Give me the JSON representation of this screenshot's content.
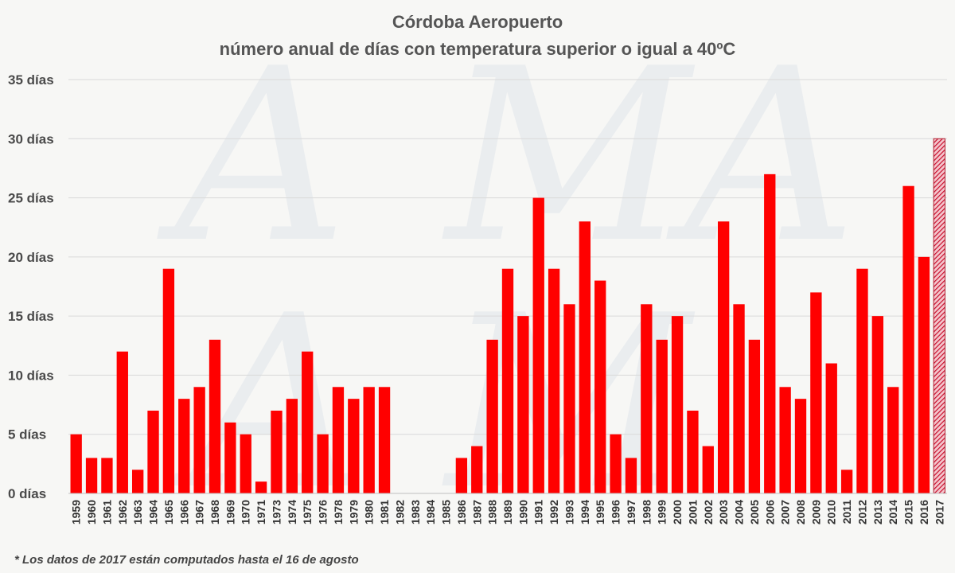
{
  "chart_data": {
    "type": "bar",
    "title": "Córdoba Aeropuerto",
    "subtitle": "número anual de días con temperatura superior o igual a 40ºC",
    "xlabel": "",
    "ylabel": "",
    "ylim": [
      0,
      35
    ],
    "yticks": [
      "0 días",
      "5 días",
      "10 días",
      "15 días",
      "20 días",
      "25 días",
      "30 días",
      "35 días"
    ],
    "grid": true,
    "legend": "none",
    "categories": [
      "1959",
      "1960",
      "1961",
      "1962",
      "1963",
      "1964",
      "1965",
      "1966",
      "1967",
      "1968",
      "1969",
      "1970",
      "1971",
      "1973",
      "1974",
      "1975",
      "1976",
      "1978",
      "1979",
      "1980",
      "1981",
      "1982",
      "1983",
      "1984",
      "1985",
      "1986",
      "1987",
      "1988",
      "1989",
      "1990",
      "1991",
      "1992",
      "1993",
      "1994",
      "1995",
      "1996",
      "1997",
      "1998",
      "1999",
      "2000",
      "2001",
      "2002",
      "2003",
      "2004",
      "2005",
      "2006",
      "2007",
      "2008",
      "2009",
      "2010",
      "2011",
      "2012",
      "2013",
      "2014",
      "2015",
      "2016",
      "2017"
    ],
    "values": [
      5,
      3,
      3,
      12,
      2,
      7,
      19,
      8,
      9,
      13,
      6,
      5,
      1,
      7,
      8,
      12,
      5,
      9,
      8,
      9,
      9,
      null,
      null,
      null,
      null,
      3,
      4,
      13,
      19,
      15,
      25,
      19,
      16,
      23,
      18,
      5,
      3,
      16,
      13,
      15,
      7,
      4,
      23,
      16,
      13,
      27,
      9,
      8,
      17,
      11,
      2,
      19,
      15,
      9,
      26,
      20,
      30
    ],
    "highlight": {
      "category": "2017",
      "pattern": "hatched"
    },
    "colors": {
      "bar": "#ff0000",
      "highlight_bar": "#e0506a",
      "grid": "#d9d9d9"
    },
    "footnote": "* Los datos de 2017 están computados hasta el 16 de agosto"
  }
}
